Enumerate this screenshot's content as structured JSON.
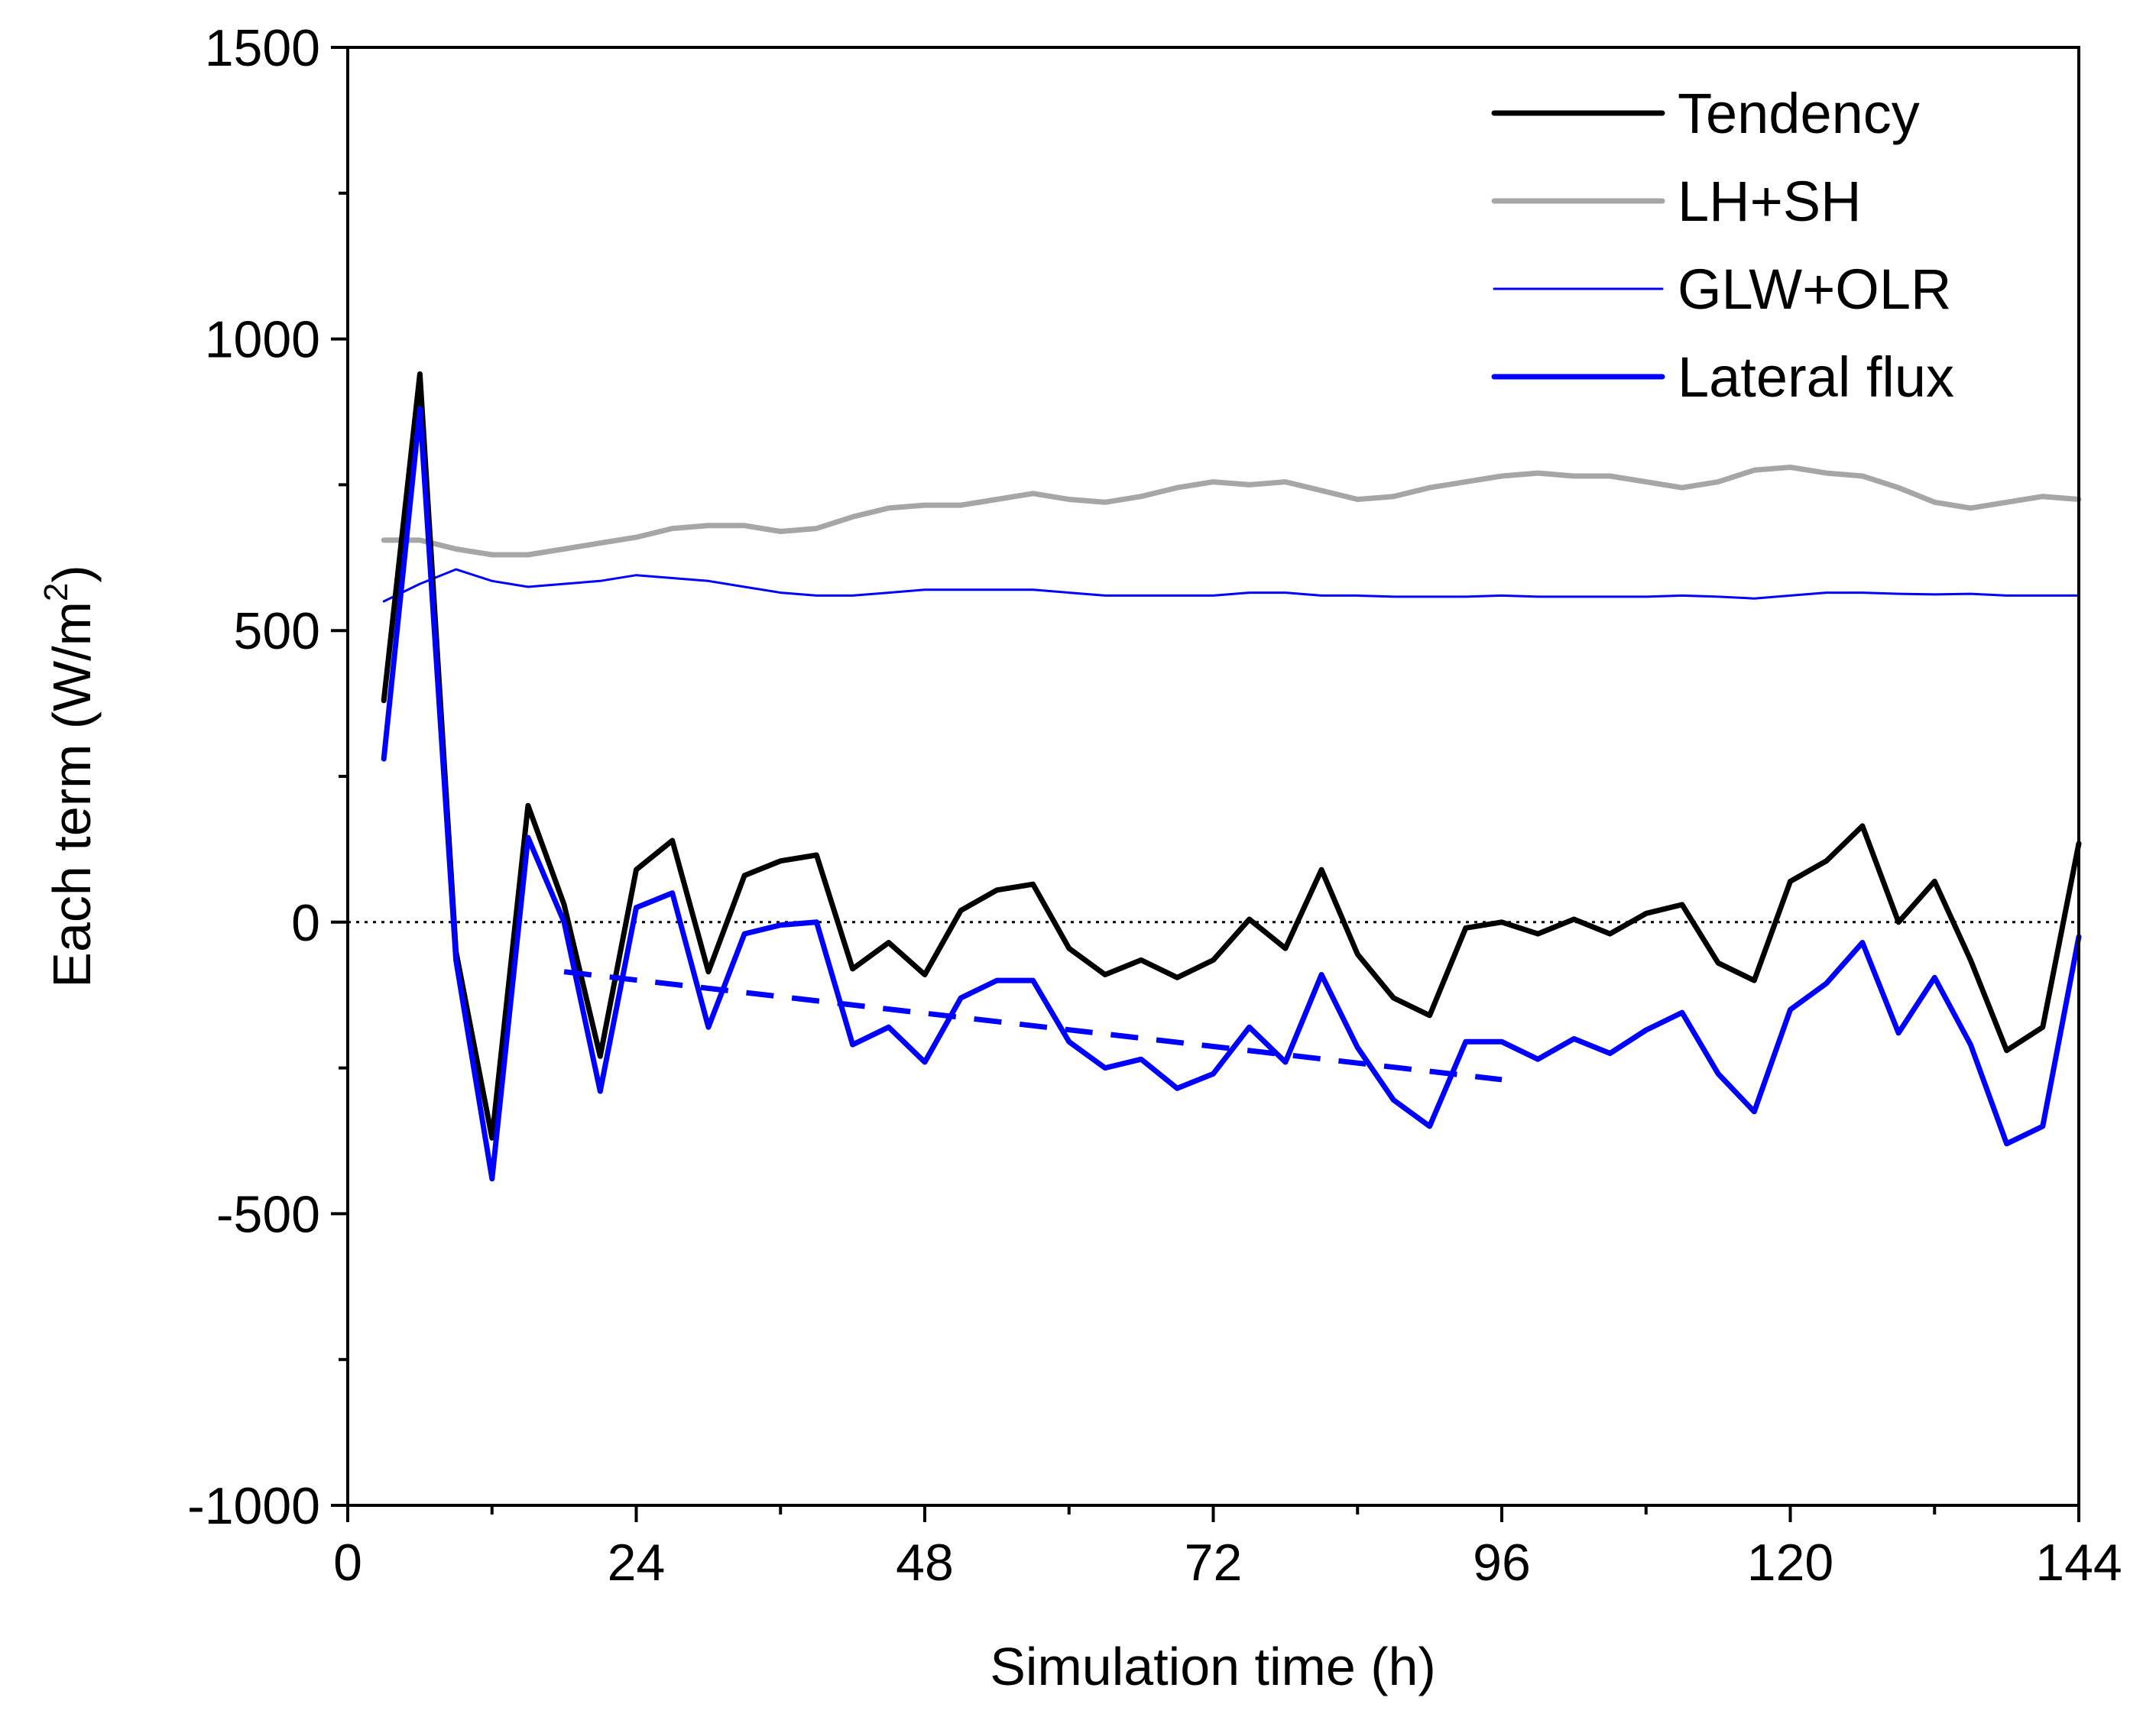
{
  "chart_data": {
    "type": "line",
    "title": "",
    "xlabel": "Simulation time (h)",
    "ylabel_main": "Each term (W/m",
    "ylabel_sup": "2",
    "ylabel_close": ")",
    "xlim": [
      0,
      144
    ],
    "ylim": [
      -1000,
      1500
    ],
    "xticks": [
      0,
      24,
      48,
      72,
      96,
      120,
      144
    ],
    "xtick_labels": [
      "0",
      "24",
      "48",
      "72",
      "96",
      "120",
      "144"
    ],
    "yticks": [
      -1000,
      -500,
      0,
      500,
      1000,
      1500
    ],
    "ytick_labels": [
      "-1000",
      "-500",
      "0",
      "500",
      "1000",
      "1500"
    ],
    "grid": false,
    "legend_position": "top-right",
    "zero_reference_line": {
      "y": 0,
      "style": "dotted",
      "color": "#000000"
    },
    "x": [
      3,
      6,
      9,
      12,
      15,
      18,
      21,
      24,
      27,
      30,
      33,
      36,
      39,
      42,
      45,
      48,
      51,
      54,
      57,
      60,
      63,
      66,
      69,
      72,
      75,
      78,
      81,
      84,
      87,
      90,
      93,
      96,
      99,
      102,
      105,
      108,
      111,
      114,
      117,
      120,
      123,
      126,
      129,
      132,
      135,
      138,
      141,
      144
    ],
    "series": [
      {
        "name": "Tendency",
        "color": "#000000",
        "width": "thick",
        "values": [
          380,
          940,
          -50,
          -370,
          200,
          30,
          -230,
          90,
          140,
          -85,
          80,
          105,
          115,
          -80,
          -35,
          -90,
          20,
          55,
          65,
          -45,
          -90,
          -65,
          -95,
          -65,
          5,
          -45,
          90,
          -55,
          -130,
          -160,
          -10,
          0,
          -20,
          5,
          -20,
          15,
          30,
          -70,
          -100,
          70,
          105,
          165,
          0,
          70,
          -65,
          -220,
          -180,
          135
        ]
      },
      {
        "name": "LH+SH",
        "color": "#a6a6a6",
        "width": "thick",
        "values": [
          655,
          655,
          640,
          630,
          630,
          640,
          650,
          660,
          675,
          680,
          680,
          670,
          675,
          695,
          710,
          715,
          715,
          725,
          735,
          725,
          720,
          730,
          745,
          755,
          750,
          755,
          740,
          725,
          730,
          745,
          755,
          765,
          770,
          765,
          765,
          755,
          745,
          755,
          775,
          780,
          770,
          765,
          745,
          720,
          710,
          720,
          730,
          725
        ]
      },
      {
        "name": "GLW+OLR",
        "color": "#0000ff",
        "width": "thin",
        "values": [
          550,
          580,
          605,
          585,
          575,
          580,
          585,
          595,
          590,
          585,
          575,
          565,
          560,
          560,
          565,
          570,
          570,
          570,
          570,
          565,
          560,
          560,
          560,
          560,
          565,
          565,
          560,
          560,
          558,
          558,
          558,
          560,
          558,
          558,
          558,
          558,
          560,
          558,
          555,
          560,
          565,
          565,
          563,
          562,
          563,
          560,
          560,
          560
        ]
      },
      {
        "name": "Lateral flux",
        "color": "#0000ff",
        "width": "thick",
        "values": [
          280,
          880,
          -65,
          -440,
          145,
          0,
          -290,
          25,
          50,
          -180,
          -20,
          -5,
          0,
          -210,
          -180,
          -240,
          -130,
          -100,
          -100,
          -205,
          -250,
          -235,
          -285,
          -260,
          -180,
          -240,
          -90,
          -215,
          -305,
          -350,
          -205,
          -205,
          -235,
          -200,
          -225,
          -185,
          -155,
          -260,
          -325,
          -150,
          -105,
          -35,
          -190,
          -95,
          -210,
          -380,
          -350,
          -25
        ]
      },
      {
        "name": "Lateral flux trend",
        "color": "#0000ff",
        "width": "thick",
        "style": "dashed",
        "in_legend": false,
        "x": [
          18,
          96
        ],
        "values": [
          -85,
          -270
        ]
      }
    ]
  }
}
